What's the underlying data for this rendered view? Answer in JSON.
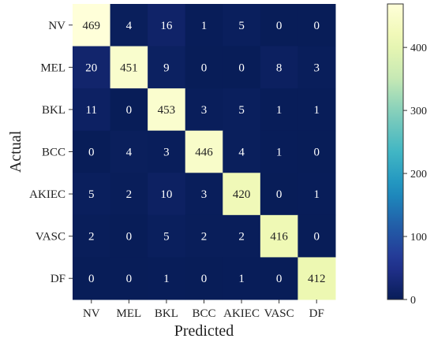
{
  "chart_data": {
    "type": "heatmap",
    "title": "",
    "xlabel": "Predicted",
    "ylabel": "Actual",
    "x_categories": [
      "NV",
      "MEL",
      "BKL",
      "BCC",
      "AKIEC",
      "VASC",
      "DF"
    ],
    "y_categories": [
      "NV",
      "MEL",
      "BKL",
      "BCC",
      "AKIEC",
      "VASC",
      "DF"
    ],
    "values": [
      [
        469,
        4,
        16,
        1,
        5,
        0,
        0
      ],
      [
        20,
        451,
        9,
        0,
        0,
        8,
        3
      ],
      [
        11,
        0,
        453,
        3,
        5,
        1,
        1
      ],
      [
        0,
        4,
        3,
        446,
        4,
        1,
        0
      ],
      [
        5,
        2,
        10,
        3,
        420,
        0,
        1
      ],
      [
        2,
        0,
        5,
        2,
        2,
        416,
        0
      ],
      [
        0,
        0,
        1,
        0,
        1,
        0,
        412
      ]
    ],
    "colormap": "YlGnBu",
    "color_range": [
      0,
      469
    ],
    "colorbar_ticks": [
      0,
      100,
      200,
      300,
      400
    ],
    "colorbar_tick_labels": [
      "0",
      "100",
      "200",
      "300",
      "400"
    ],
    "colors": {
      "low": "#081d58",
      "high": "#ffffd9",
      "dark_text": "#222222",
      "light_text": "#ffffff"
    }
  }
}
